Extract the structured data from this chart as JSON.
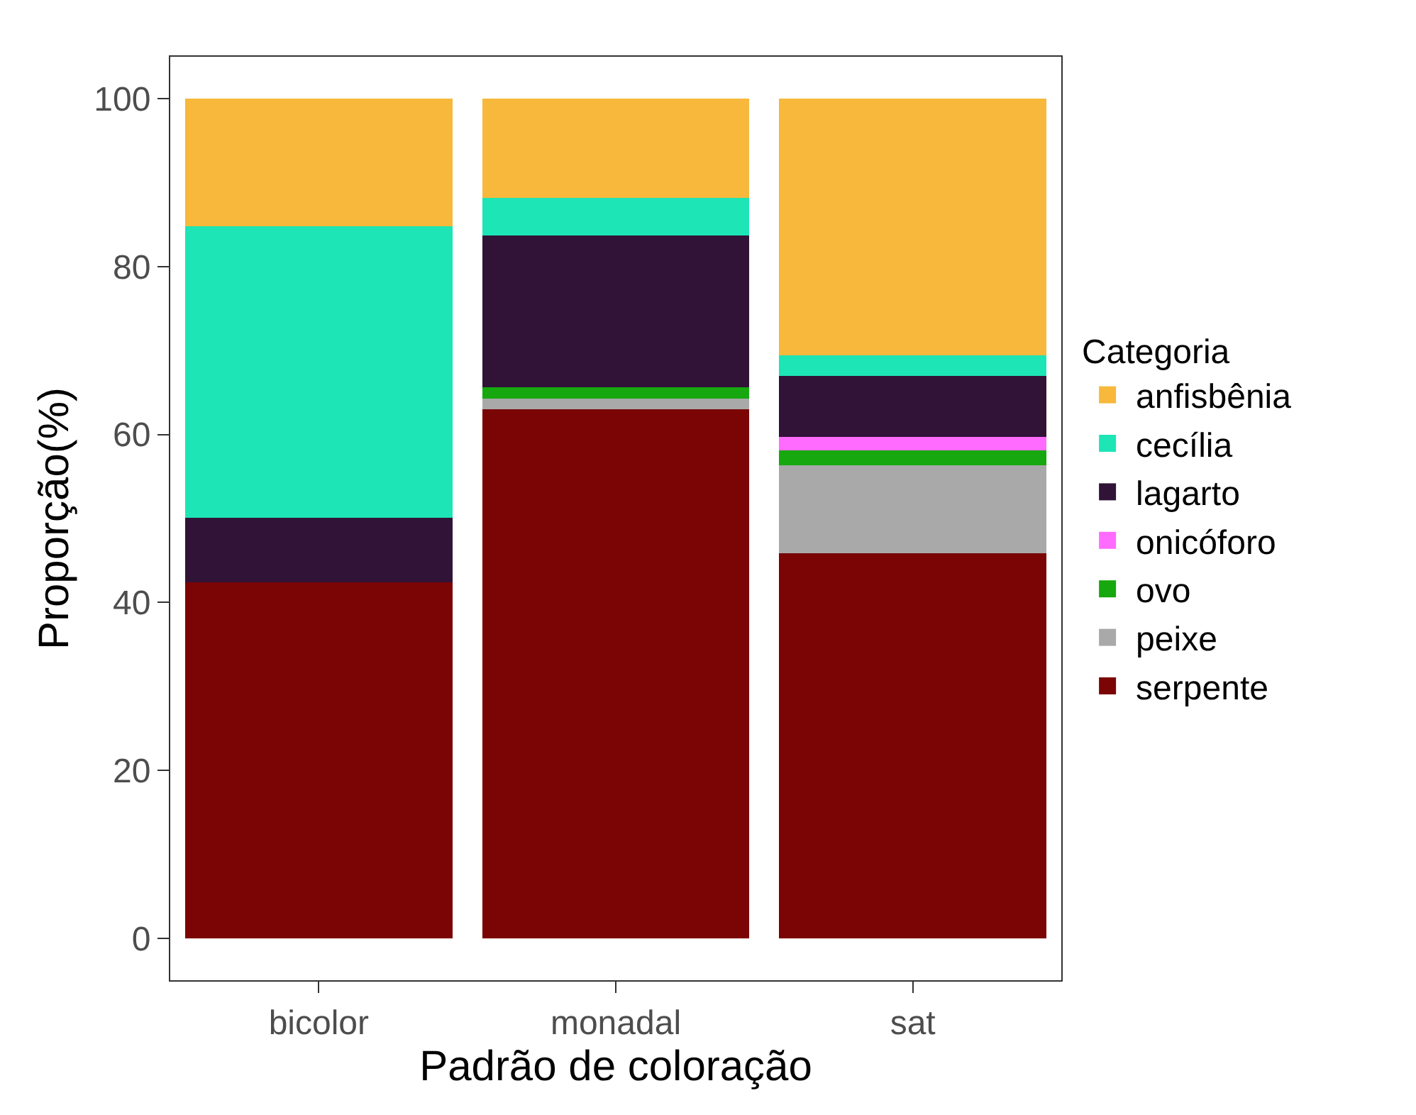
{
  "chart_data": {
    "type": "bar",
    "stacked": true,
    "xlabel": "Padrão de coloração",
    "ylabel": "Proporção(%)",
    "legend_title": "Categoria",
    "legend": "right",
    "grid": false,
    "categories": [
      "bicolor",
      "monadal",
      "sat"
    ],
    "ylim": [
      -5,
      105
    ],
    "yticks": [
      0,
      20,
      40,
      60,
      80,
      100
    ],
    "series": [
      {
        "name": "serpente",
        "color": "#7b0404",
        "values": [
          42.4,
          63.0,
          45.9
        ]
      },
      {
        "name": "peixe",
        "color": "#a9a9a9",
        "values": [
          null,
          1.3,
          10.4
        ]
      },
      {
        "name": "ovo",
        "color": "#16a80e",
        "values": [
          null,
          1.3,
          1.8
        ]
      },
      {
        "name": "onicóforo",
        "color": "#ff6bff",
        "values": [
          null,
          null,
          1.6
        ]
      },
      {
        "name": "lagarto",
        "color": "#311338",
        "values": [
          7.7,
          18.1,
          7.3
        ]
      },
      {
        "name": "cecília",
        "color": "#1de5b5",
        "values": [
          34.7,
          4.5,
          2.4
        ]
      },
      {
        "name": "anfisbênia",
        "color": "#f7b83b",
        "values": [
          15.2,
          11.8,
          30.6
        ]
      }
    ]
  }
}
